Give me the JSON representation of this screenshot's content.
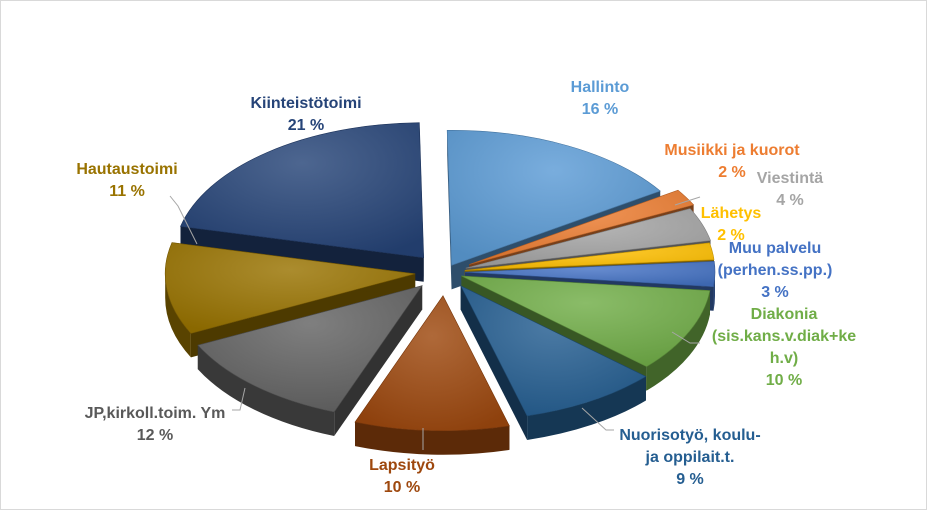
{
  "chart_data": {
    "type": "pie",
    "title": "",
    "style": "exploded 3D pie",
    "legend": "none",
    "slices": [
      {
        "label": "Hallinto",
        "value": 16,
        "value_label": "16 %",
        "color": "#5b9bd5",
        "label_color": "#5b9bd5"
      },
      {
        "label": "Musiikki ja kuorot",
        "value": 2,
        "value_label": "2 %",
        "color": "#ed7d31",
        "label_color": "#ed7d31"
      },
      {
        "label": "Viestintä",
        "value": 4,
        "value_label": "4 %",
        "color": "#a5a5a5",
        "label_color": "#a5a5a5"
      },
      {
        "label": "Lähetys",
        "value": 2,
        "value_label": "2 %",
        "color": "#ffc000",
        "label_color": "#ffc000"
      },
      {
        "label_lines": [
          "Muu palvelu",
          "(perhen.ss.pp.)"
        ],
        "value": 3,
        "value_label": "3 %",
        "color": "#4472c4",
        "label_color": "#4472c4"
      },
      {
        "label_lines": [
          "Diakonia",
          "(sis.kans.v.diak+ke",
          "h.v)"
        ],
        "value": 10,
        "value_label": "10 %",
        "color": "#70ad47",
        "label_color": "#70ad47"
      },
      {
        "label_lines": [
          "Nuorisotyö, koulu-",
          "ja oppilait.t."
        ],
        "value": 9,
        "value_label": "9 %",
        "color": "#255e91",
        "label_color": "#255e91"
      },
      {
        "label": "Lapsityö",
        "value": 10,
        "value_label": "10 %",
        "color": "#9e480e",
        "label_color": "#9e480e"
      },
      {
        "label": "JP,kirkoll.toim. Ym",
        "value": 12,
        "value_label": "12 %",
        "color": "#636363",
        "label_color": "#595959"
      },
      {
        "label": "Hautaustoimi",
        "value": 11,
        "value_label": "11 %",
        "color": "#997300",
        "label_color": "#997300"
      },
      {
        "label": "Kiinteistötoimi",
        "value": 21,
        "value_label": "21 %",
        "color": "#264478",
        "label_color": "#264478"
      }
    ]
  }
}
